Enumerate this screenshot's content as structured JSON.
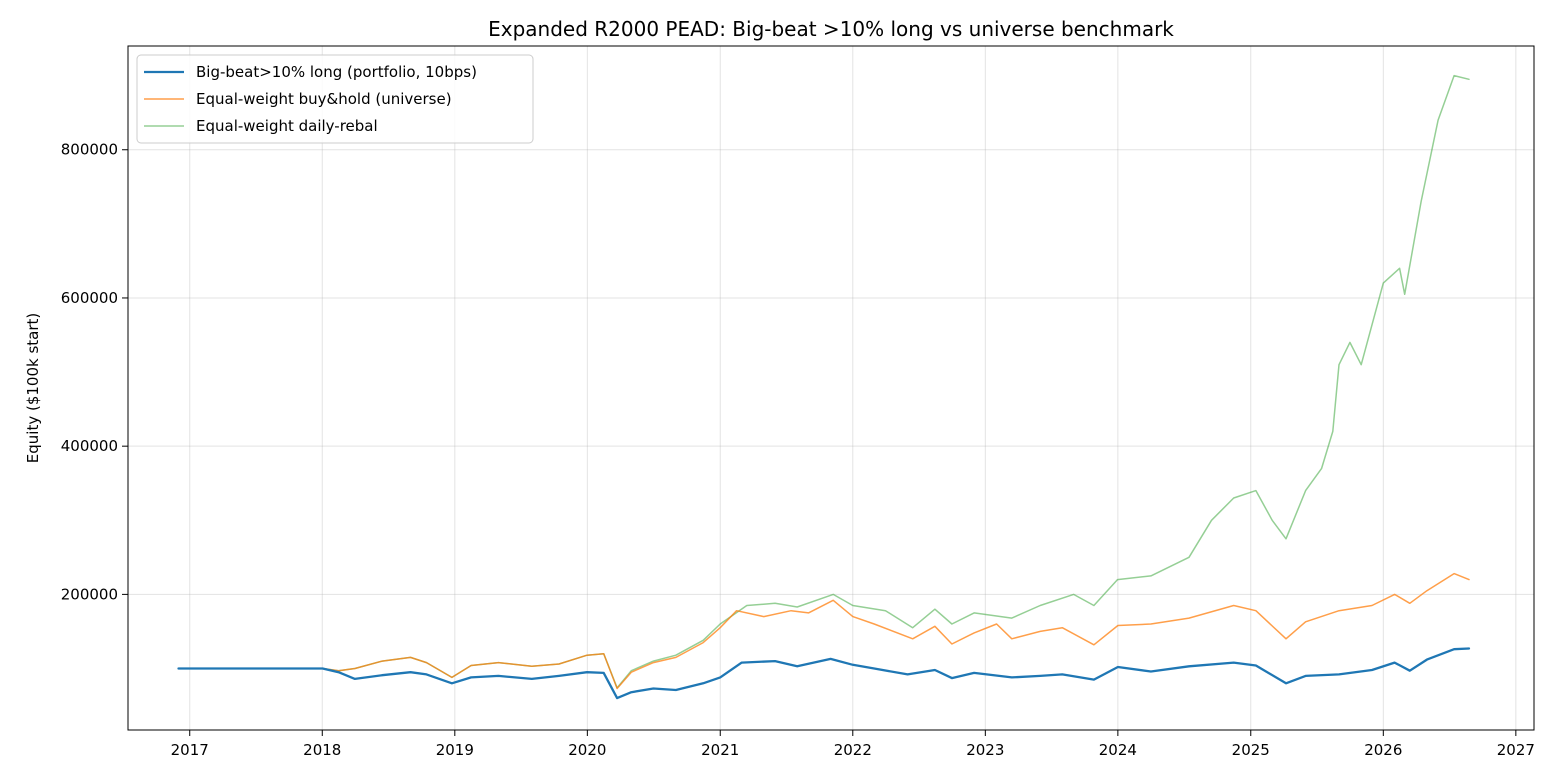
{
  "chart_data": {
    "type": "line",
    "title": "Expanded R2000 PEAD: Big-beat >10% long vs universe benchmark",
    "xlabel": "",
    "ylabel": "Equity ($100k start)",
    "xlim": [
      "2016-07-15",
      "2027-02-20"
    ],
    "ylim": [
      17000,
      940000
    ],
    "x_ticks": [
      "2017",
      "2018",
      "2019",
      "2020",
      "2021",
      "2022",
      "2023",
      "2024",
      "2025",
      "2026",
      "2027"
    ],
    "y_ticks": [
      200000,
      400000,
      600000,
      800000
    ],
    "y_tick_labels": [
      "200000",
      "400000",
      "600000",
      "800000"
    ],
    "grid": true,
    "legend_position": "upper-left",
    "series": [
      {
        "name": "Big-beat>10% long (portfolio, 10bps)",
        "color": "#1f77b4",
        "points": [
          [
            "2016-12-01",
            100000
          ],
          [
            "2017-06-01",
            100000
          ],
          [
            "2018-01-02",
            100000
          ],
          [
            "2018-02-15",
            95000
          ],
          [
            "2018-04-01",
            86000
          ],
          [
            "2018-06-15",
            91000
          ],
          [
            "2018-09-01",
            95000
          ],
          [
            "2018-10-15",
            92000
          ],
          [
            "2018-12-24",
            80000
          ],
          [
            "2019-02-15",
            88000
          ],
          [
            "2019-05-01",
            90000
          ],
          [
            "2019-08-01",
            86000
          ],
          [
            "2019-10-15",
            90000
          ],
          [
            "2019-12-31",
            95000
          ],
          [
            "2020-02-15",
            94000
          ],
          [
            "2020-03-23",
            60000
          ],
          [
            "2020-05-01",
            68000
          ],
          [
            "2020-07-01",
            73000
          ],
          [
            "2020-09-01",
            71000
          ],
          [
            "2020-11-15",
            80000
          ],
          [
            "2021-01-01",
            88000
          ],
          [
            "2021-03-01",
            108000
          ],
          [
            "2021-06-01",
            110000
          ],
          [
            "2021-08-01",
            103000
          ],
          [
            "2021-11-01",
            113000
          ],
          [
            "2022-01-01",
            105000
          ],
          [
            "2022-03-01",
            100000
          ],
          [
            "2022-06-01",
            92000
          ],
          [
            "2022-08-15",
            98000
          ],
          [
            "2022-10-01",
            87000
          ],
          [
            "2022-12-01",
            94000
          ],
          [
            "2023-03-15",
            88000
          ],
          [
            "2023-06-01",
            90000
          ],
          [
            "2023-08-01",
            92000
          ],
          [
            "2023-10-27",
            85000
          ],
          [
            "2024-01-01",
            102000
          ],
          [
            "2024-04-01",
            96000
          ],
          [
            "2024-07-15",
            103000
          ],
          [
            "2024-11-15",
            108000
          ],
          [
            "2025-01-15",
            104000
          ],
          [
            "2025-04-08",
            80000
          ],
          [
            "2025-06-01",
            90000
          ],
          [
            "2025-09-01",
            92000
          ],
          [
            "2025-12-01",
            98000
          ],
          [
            "2026-02-01",
            108000
          ],
          [
            "2026-03-15",
            97000
          ],
          [
            "2026-05-01",
            112000
          ],
          [
            "2026-07-15",
            126000
          ],
          [
            "2026-08-25",
            127000
          ]
        ]
      },
      {
        "name": "Equal-weight buy&hold (universe)",
        "color": "#ff7f0e",
        "points": [
          [
            "2018-01-02",
            100000
          ],
          [
            "2018-02-15",
            97000
          ],
          [
            "2018-04-01",
            100000
          ],
          [
            "2018-06-15",
            110000
          ],
          [
            "2018-09-01",
            115000
          ],
          [
            "2018-10-15",
            108000
          ],
          [
            "2018-12-24",
            88000
          ],
          [
            "2019-02-15",
            104000
          ],
          [
            "2019-05-01",
            108000
          ],
          [
            "2019-08-01",
            103000
          ],
          [
            "2019-10-15",
            106000
          ],
          [
            "2019-12-31",
            118000
          ],
          [
            "2020-02-15",
            120000
          ],
          [
            "2020-03-23",
            73000
          ],
          [
            "2020-05-01",
            95000
          ],
          [
            "2020-07-01",
            108000
          ],
          [
            "2020-09-01",
            115000
          ],
          [
            "2020-11-15",
            135000
          ],
          [
            "2021-01-01",
            155000
          ],
          [
            "2021-02-15",
            178000
          ],
          [
            "2021-05-01",
            170000
          ],
          [
            "2021-07-15",
            178000
          ],
          [
            "2021-09-01",
            175000
          ],
          [
            "2021-11-08",
            192000
          ],
          [
            "2022-01-01",
            170000
          ],
          [
            "2022-03-01",
            160000
          ],
          [
            "2022-06-15",
            140000
          ],
          [
            "2022-08-15",
            157000
          ],
          [
            "2022-10-01",
            133000
          ],
          [
            "2022-12-01",
            148000
          ],
          [
            "2023-02-01",
            160000
          ],
          [
            "2023-03-15",
            140000
          ],
          [
            "2023-06-01",
            150000
          ],
          [
            "2023-08-01",
            155000
          ],
          [
            "2023-10-27",
            132000
          ],
          [
            "2024-01-01",
            158000
          ],
          [
            "2024-04-01",
            160000
          ],
          [
            "2024-07-15",
            168000
          ],
          [
            "2024-11-15",
            185000
          ],
          [
            "2025-01-15",
            178000
          ],
          [
            "2025-04-08",
            140000
          ],
          [
            "2025-06-01",
            163000
          ],
          [
            "2025-09-01",
            178000
          ],
          [
            "2025-12-01",
            185000
          ],
          [
            "2026-02-01",
            200000
          ],
          [
            "2026-03-15",
            188000
          ],
          [
            "2026-05-01",
            205000
          ],
          [
            "2026-07-15",
            228000
          ],
          [
            "2026-08-25",
            220000
          ]
        ]
      },
      {
        "name": "Equal-weight daily-rebal",
        "color": "#2ca02c",
        "points": [
          [
            "2018-01-02",
            100000
          ],
          [
            "2018-02-15",
            97000
          ],
          [
            "2018-04-01",
            100000
          ],
          [
            "2018-06-15",
            110000
          ],
          [
            "2018-09-01",
            115000
          ],
          [
            "2018-10-15",
            108000
          ],
          [
            "2018-12-24",
            88000
          ],
          [
            "2019-02-15",
            104000
          ],
          [
            "2019-05-01",
            108000
          ],
          [
            "2019-08-01",
            103000
          ],
          [
            "2019-10-15",
            106000
          ],
          [
            "2019-12-31",
            118000
          ],
          [
            "2020-02-15",
            120000
          ],
          [
            "2020-03-23",
            74000
          ],
          [
            "2020-05-01",
            97000
          ],
          [
            "2020-07-01",
            110000
          ],
          [
            "2020-09-01",
            118000
          ],
          [
            "2020-11-15",
            138000
          ],
          [
            "2021-01-01",
            160000
          ],
          [
            "2021-03-15",
            185000
          ],
          [
            "2021-06-01",
            188000
          ],
          [
            "2021-08-01",
            183000
          ],
          [
            "2021-11-08",
            200000
          ],
          [
            "2022-01-01",
            185000
          ],
          [
            "2022-04-01",
            178000
          ],
          [
            "2022-06-15",
            155000
          ],
          [
            "2022-08-15",
            180000
          ],
          [
            "2022-10-01",
            160000
          ],
          [
            "2022-12-01",
            175000
          ],
          [
            "2023-03-15",
            168000
          ],
          [
            "2023-06-01",
            185000
          ],
          [
            "2023-09-01",
            200000
          ],
          [
            "2023-10-27",
            185000
          ],
          [
            "2023-12-31",
            220000
          ],
          [
            "2024-04-01",
            225000
          ],
          [
            "2024-07-15",
            250000
          ],
          [
            "2024-09-15",
            300000
          ],
          [
            "2024-11-15",
            330000
          ],
          [
            "2025-01-15",
            340000
          ],
          [
            "2025-03-01",
            300000
          ],
          [
            "2025-04-08",
            275000
          ],
          [
            "2025-06-01",
            340000
          ],
          [
            "2025-07-15",
            370000
          ],
          [
            "2025-08-15",
            420000
          ],
          [
            "2025-09-01",
            510000
          ],
          [
            "2025-10-01",
            540000
          ],
          [
            "2025-11-01",
            510000
          ],
          [
            "2026-01-01",
            620000
          ],
          [
            "2026-02-15",
            640000
          ],
          [
            "2026-03-01",
            605000
          ],
          [
            "2026-04-15",
            730000
          ],
          [
            "2026-06-01",
            840000
          ],
          [
            "2026-07-15",
            900000
          ],
          [
            "2026-08-25",
            895000
          ]
        ]
      }
    ]
  }
}
